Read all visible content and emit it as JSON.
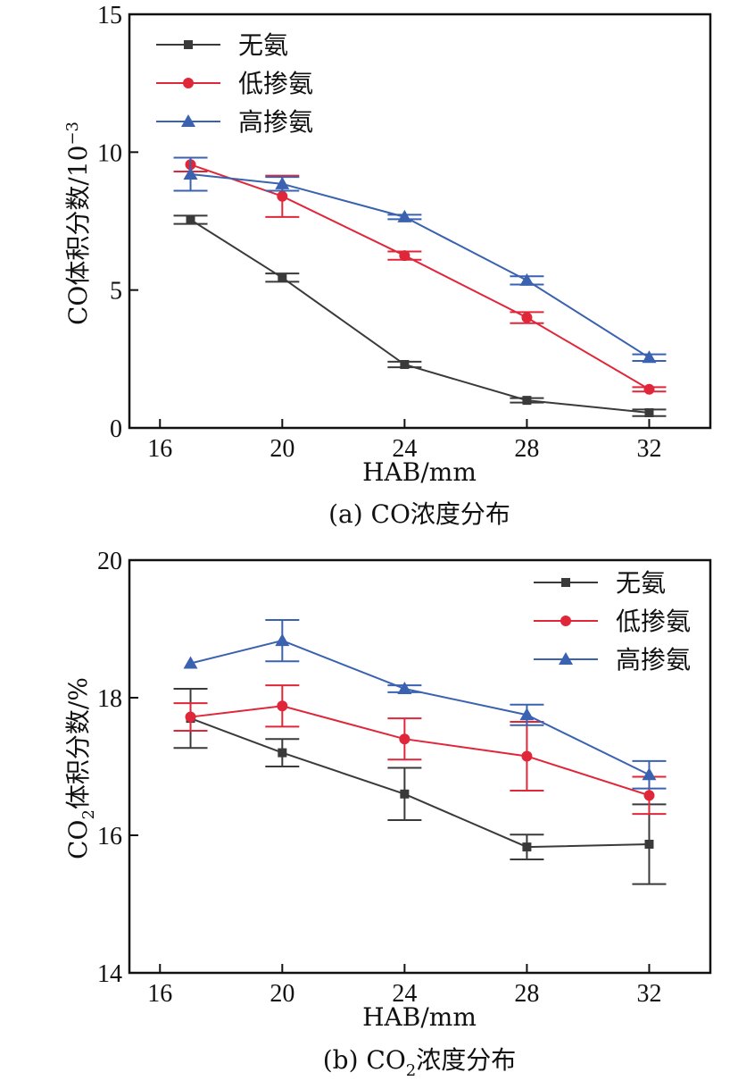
{
  "chart_data": [
    {
      "type": "line",
      "caption": "(a) CO浓度分布",
      "xlabel": "HAB/mm",
      "ylabel": "CO体积分数/10",
      "ylabel_sup": "−3",
      "x": [
        17,
        20,
        24,
        28,
        32
      ],
      "xticks": [
        16,
        20,
        24,
        28,
        32
      ],
      "xlim": [
        15,
        34
      ],
      "yticks": [
        0,
        5,
        10,
        15
      ],
      "ylim": [
        0,
        15
      ],
      "grid": false,
      "legend_position": "top-left",
      "series": [
        {
          "name": "无氨",
          "color": "#3a3a3a",
          "marker": "square",
          "values": [
            7.55,
            5.45,
            2.3,
            1.0,
            0.55
          ],
          "errors": [
            0.15,
            0.15,
            0.1,
            0.08,
            0.12
          ]
        },
        {
          "name": "低掺氨",
          "color": "#e0273a",
          "marker": "circle",
          "values": [
            9.55,
            8.4,
            6.25,
            4.0,
            1.4
          ],
          "errors": [
            0.25,
            0.75,
            0.15,
            0.2,
            0.08
          ]
        },
        {
          "name": "高掺氨",
          "color": "#3a62b0",
          "marker": "triangle",
          "values": [
            9.2,
            8.85,
            7.65,
            5.35,
            2.55
          ],
          "errors": [
            0.6,
            0.25,
            0.08,
            0.15,
            0.12
          ]
        }
      ]
    },
    {
      "type": "line",
      "caption_pre": "(b) CO",
      "caption_sub": "2",
      "caption_post": "浓度分布",
      "xlabel": "HAB/mm",
      "ylabel_pre": "CO",
      "ylabel_sub": "2",
      "ylabel_post": "体积分数/%",
      "x": [
        17,
        20,
        24,
        28,
        32
      ],
      "xticks": [
        16,
        20,
        24,
        28,
        32
      ],
      "xlim": [
        15,
        34
      ],
      "yticks": [
        14,
        16,
        18,
        20
      ],
      "ylim": [
        14,
        20
      ],
      "grid": false,
      "legend_position": "top-right",
      "series": [
        {
          "name": "无氨",
          "color": "#3a3a3a",
          "marker": "square",
          "values": [
            17.7,
            17.2,
            16.6,
            15.83,
            15.87
          ],
          "errors": [
            0.43,
            0.2,
            0.38,
            0.18,
            0.58
          ]
        },
        {
          "name": "低掺氨",
          "color": "#e0273a",
          "marker": "circle",
          "values": [
            17.72,
            17.88,
            17.4,
            17.15,
            16.58
          ],
          "errors": [
            0.2,
            0.3,
            0.3,
            0.5,
            0.27
          ]
        },
        {
          "name": "高掺氨",
          "color": "#3a62b0",
          "marker": "triangle",
          "values": [
            18.5,
            18.83,
            18.13,
            17.75,
            16.88
          ],
          "errors": [
            0.0,
            0.3,
            0.05,
            0.15,
            0.2
          ]
        }
      ]
    }
  ]
}
